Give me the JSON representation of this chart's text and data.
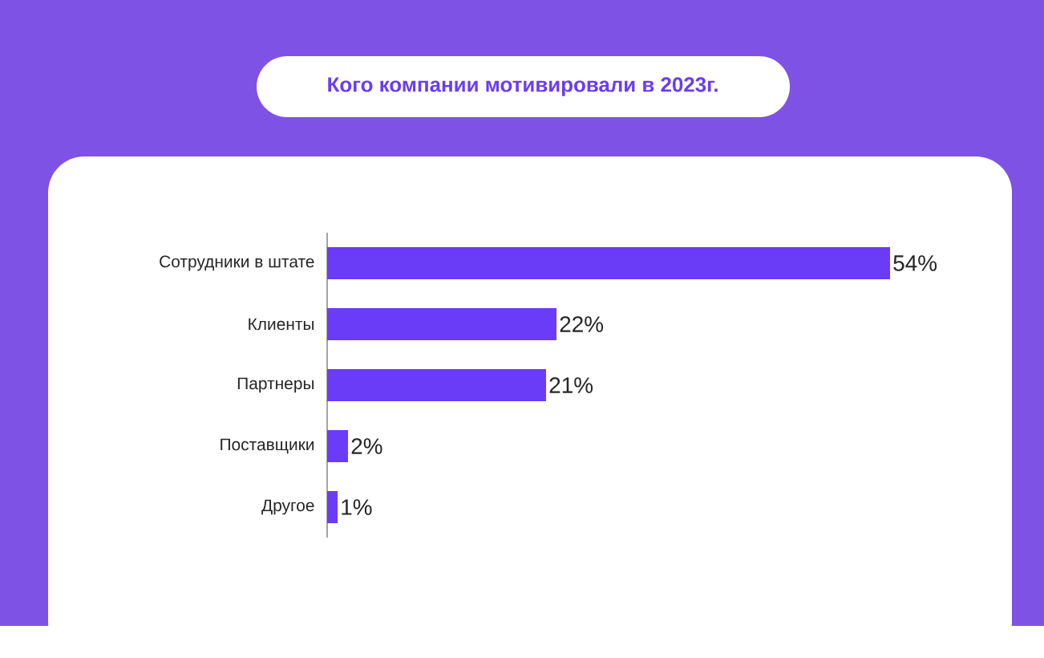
{
  "chart_data": {
    "type": "bar",
    "orientation": "horizontal",
    "title": "Кого компании мотивировали в 2023г.",
    "categories": [
      "Сотрудники в штате",
      "Клиенты",
      "Партнеры",
      "Поставщики",
      "Другое"
    ],
    "values": [
      54,
      22,
      21,
      2,
      1
    ],
    "value_labels": [
      "54%",
      "22%",
      "21%",
      "2%",
      "1%"
    ],
    "color": "#6a3cf7"
  }
}
